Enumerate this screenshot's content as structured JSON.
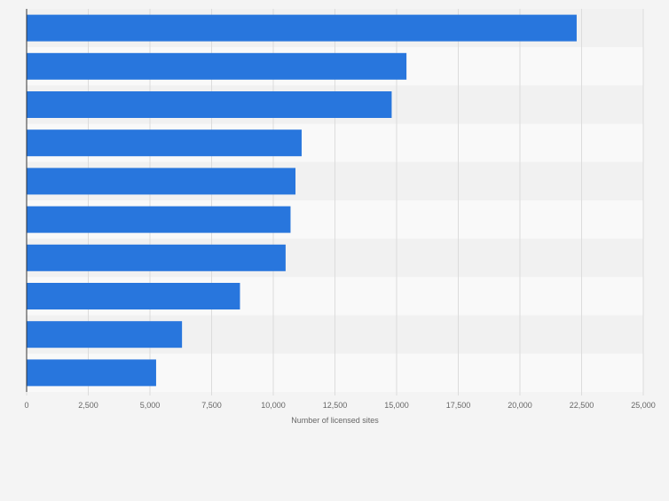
{
  "chart_data": {
    "type": "bar",
    "orientation": "horizontal",
    "title": "",
    "xlabel": "Number of licensed sites",
    "ylabel": "",
    "xlim": [
      0,
      25000
    ],
    "xticks": [
      0,
      2500,
      5000,
      7500,
      10000,
      12500,
      15000,
      17500,
      20000,
      22500,
      25000
    ],
    "xtick_labels": [
      "0",
      "2,500",
      "5,000",
      "7,500",
      "10,000",
      "12,500",
      "15,000",
      "17,500",
      "20,000",
      "22,500",
      "25,000"
    ],
    "categories": [
      "",
      "",
      "",
      "",
      "",
      "",
      "",
      "",
      "",
      ""
    ],
    "values": [
      22300,
      15400,
      14800,
      11150,
      10900,
      10700,
      10500,
      8650,
      6300,
      5250
    ],
    "grid": "vertical",
    "legend": "none",
    "colors": {
      "bar": "#2876dd",
      "band_dark": "#f1f1f1",
      "band_light": "#f9f9f9",
      "grid": "#dcdcdc",
      "axis": "#333333",
      "tick_text": "#666666",
      "background": "#f4f4f4"
    }
  }
}
